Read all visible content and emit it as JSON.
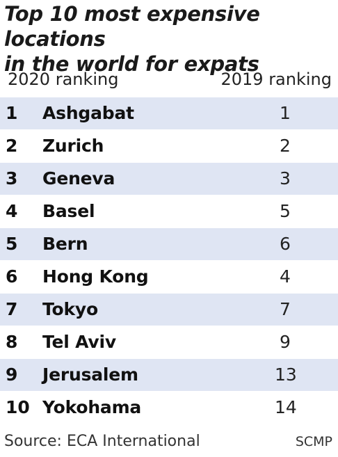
{
  "title_line1": "Top 10 most expensive locations",
  "title_line2": "in the world for expats",
  "header": {
    "left": "2020 ranking",
    "right": "2019 ranking"
  },
  "chart_data": {
    "type": "table",
    "title": "Top 10 most expensive locations in the world for expats",
    "columns": [
      "2020 ranking",
      "",
      "2019 ranking"
    ],
    "rows": [
      {
        "rank_2020": "1",
        "city": "Ashgabat",
        "rank_2019": "1"
      },
      {
        "rank_2020": "2",
        "city": "Zurich",
        "rank_2019": "2"
      },
      {
        "rank_2020": "3",
        "city": "Geneva",
        "rank_2019": "3"
      },
      {
        "rank_2020": "4",
        "city": "Basel",
        "rank_2019": "5"
      },
      {
        "rank_2020": "5",
        "city": "Bern",
        "rank_2019": "6"
      },
      {
        "rank_2020": "6",
        "city": "Hong Kong",
        "rank_2019": "4"
      },
      {
        "rank_2020": "7",
        "city": "Tokyo",
        "rank_2019": "7"
      },
      {
        "rank_2020": "8",
        "city": "Tel Aviv",
        "rank_2019": "9"
      },
      {
        "rank_2020": "9",
        "city": "Jerusalem",
        "rank_2019": "13"
      },
      {
        "rank_2020": "10",
        "city": "Yokohama",
        "rank_2019": "14"
      }
    ]
  },
  "footer": {
    "source": "Source: ECA International",
    "credit": "SCMP"
  },
  "colors": {
    "row_shade": "#dfe5f3",
    "text": "#1a1a1a"
  }
}
